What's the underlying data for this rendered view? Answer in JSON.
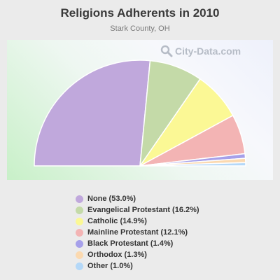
{
  "title": "Religions Adherents in 2010",
  "subtitle": "Stark County, OH",
  "watermark": "City-Data.com",
  "chart_data": {
    "type": "pie",
    "subtype": "half-donut-semicircle",
    "title": "Religions Adherents in 2010",
    "subtitle": "Stark County, OH",
    "legend_position": "bottom",
    "series": [
      {
        "name": "None",
        "value": 53.0,
        "color": "#c0a8dc",
        "legend": "None (53.0%)"
      },
      {
        "name": "Evangelical Protestant",
        "value": 16.2,
        "color": "#c4daa8",
        "legend": "Evangelical Protestant (16.2%)"
      },
      {
        "name": "Catholic",
        "value": 14.9,
        "color": "#fbf895",
        "legend": "Catholic (14.9%)"
      },
      {
        "name": "Mainline Protestant",
        "value": 12.1,
        "color": "#f3b4b4",
        "legend": "Mainline Protestant (12.1%)"
      },
      {
        "name": "Black Protestant",
        "value": 1.4,
        "color": "#a6a0ea",
        "legend": "Black Protestant (1.4%)"
      },
      {
        "name": "Orthodox",
        "value": 1.3,
        "color": "#fbd9b0",
        "legend": "Orthodox (1.3%)"
      },
      {
        "name": "Other",
        "value": 1.0,
        "color": "#b4d8f8",
        "legend": "Other (1.0%)"
      }
    ]
  }
}
